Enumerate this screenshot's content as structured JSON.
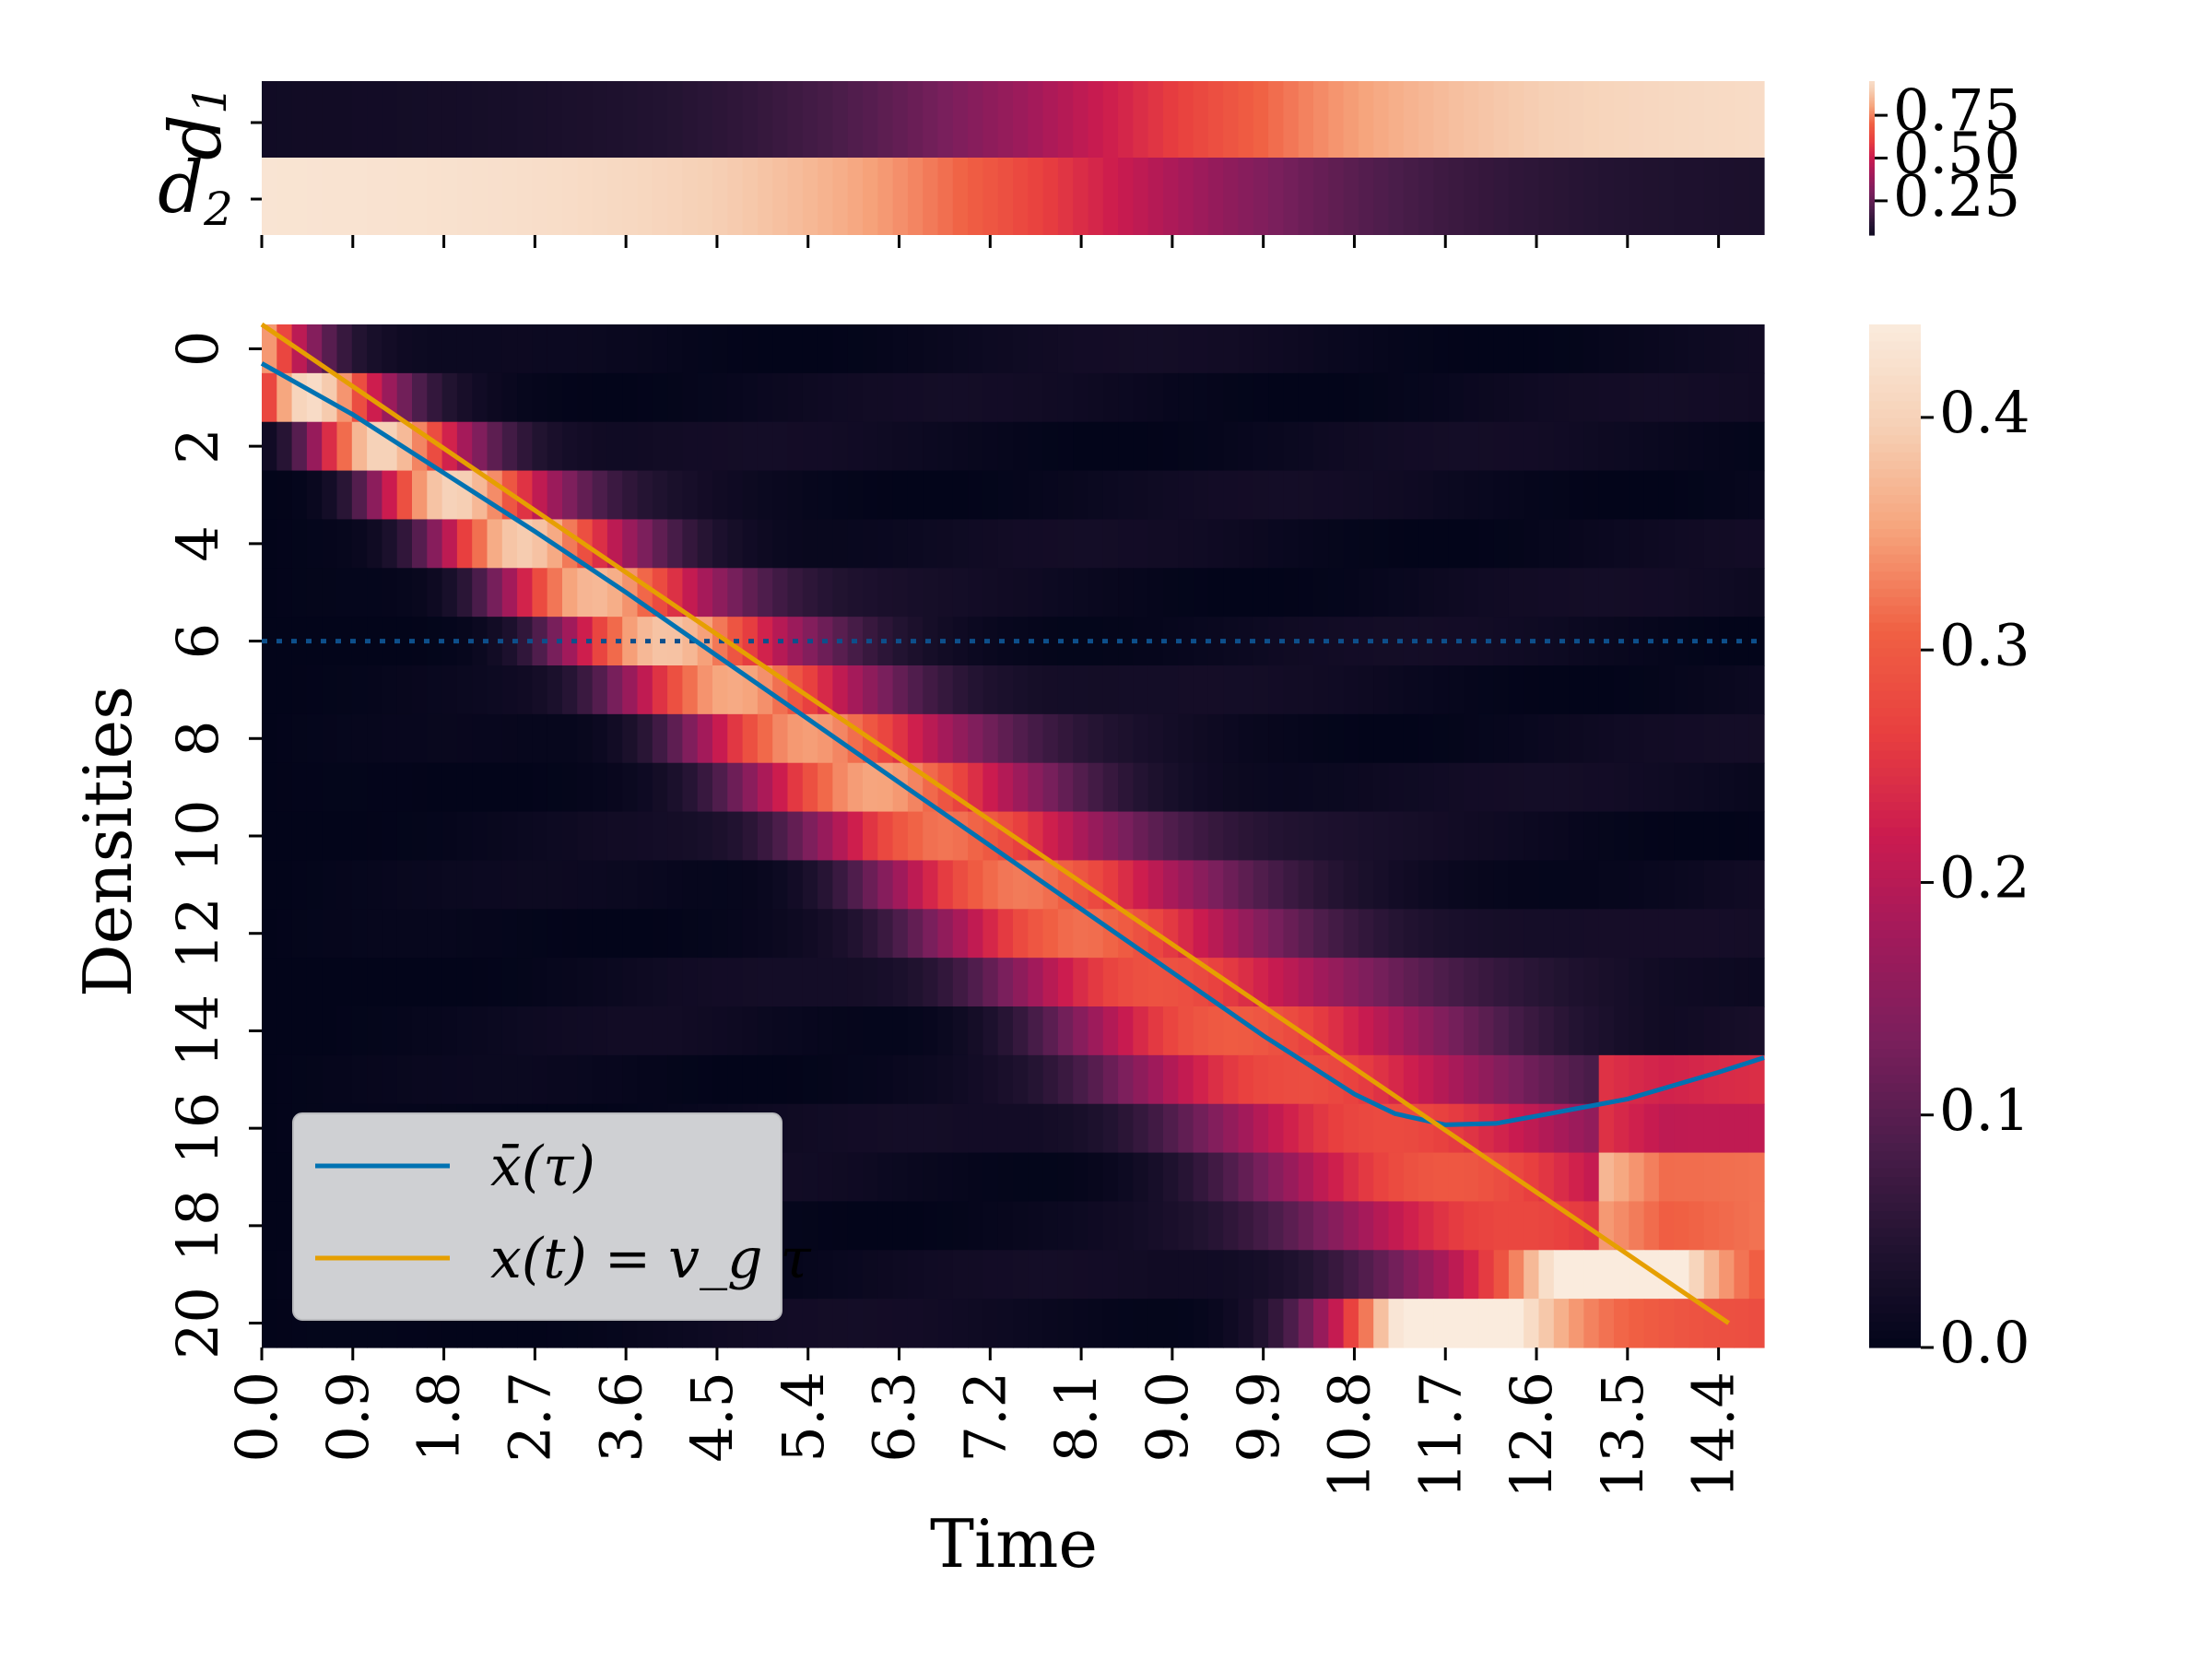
{
  "colormap": [
    "#03051a",
    "#221331",
    "#4c1d4b",
    "#7a1f5c",
    "#a11a5b",
    "#cb1b4f",
    "#e83f3f",
    "#f06043",
    "#f6a47c",
    "#f6d0b5",
    "#faebdd"
  ],
  "chart_data": [
    {
      "type": "heatmap",
      "title": "",
      "rows": [
        {
          "label_main": "d",
          "label_sub": "1",
          "trend": "increasing"
        },
        {
          "label_main": "d",
          "label_sub": "2",
          "trend": "decreasing"
        }
      ],
      "x_range": [
        0,
        14.85
      ],
      "colorbar": {
        "range": [
          0.05,
          0.95
        ],
        "ticks": [
          "0.25",
          "0.50",
          "0.75"
        ]
      }
    },
    {
      "type": "heatmap",
      "xlabel": "Time",
      "ylabel": "Densities",
      "x_range": [
        0,
        14.85
      ],
      "x_bins": 100,
      "x_ticks": [
        "0.0",
        "0.9",
        "1.8",
        "2.7",
        "3.6",
        "4.5",
        "5.4",
        "6.3",
        "7.2",
        "8.1",
        "9.0",
        "9.9",
        "10.8",
        "11.7",
        "12.6",
        "13.5",
        "14.4"
      ],
      "y_range": [
        0,
        21
      ],
      "y_ticks": [
        "0",
        "2",
        "4",
        "6",
        "8",
        "10",
        "12",
        "14",
        "16",
        "18",
        "20"
      ],
      "colorbar": {
        "range": [
          0,
          0.44
        ],
        "ticks": [
          "0.0",
          "0.1",
          "0.2",
          "0.3",
          "0.4"
        ]
      },
      "reference_line": {
        "y": 6.5,
        "style": "dotted",
        "color": "#0d4f8b"
      },
      "series": [
        {
          "name": "x̄(τ)",
          "color": "#0072b2",
          "x": [
            0,
            0.9,
            1.8,
            2.7,
            3.6,
            4.5,
            5.4,
            6.3,
            7.2,
            8.1,
            9.0,
            9.9,
            10.8,
            11.2,
            11.7,
            12.2,
            12.6,
            13.5,
            14.4,
            14.85
          ],
          "y": [
            0.8,
            1.85,
            3.05,
            4.25,
            5.5,
            6.8,
            8.1,
            9.4,
            10.7,
            12.0,
            13.3,
            14.6,
            15.8,
            16.2,
            16.43,
            16.4,
            16.25,
            15.9,
            15.35,
            15.05
          ]
        },
        {
          "name": "x(t) = v_g τ",
          "color": "#e69f00",
          "x": [
            0,
            14.5
          ],
          "y": [
            0,
            20.5
          ]
        }
      ],
      "legend": {
        "position": "lower-left",
        "entries": [
          "x̄(τ)",
          "x(t) = v_g τ"
        ]
      }
    }
  ]
}
